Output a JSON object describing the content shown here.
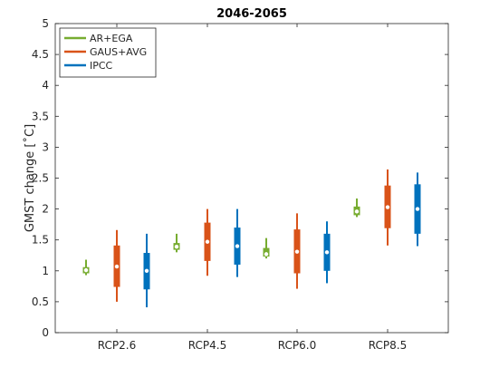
{
  "chart_data": {
    "type": "boxplot",
    "title": "2046-2065",
    "xlabel": "",
    "ylabel": "GMST change [˚C]",
    "ylim": [
      0,
      5
    ],
    "yticks": [
      0,
      0.5,
      1,
      1.5,
      2,
      2.5,
      3,
      3.5,
      4,
      4.5,
      5
    ],
    "ytick_labels": [
      "0",
      "0.5",
      "1",
      "1.5",
      "2",
      "2.5",
      "3",
      "3.5",
      "4",
      "4.5",
      "5"
    ],
    "categories": [
      "RCP2.6",
      "RCP4.5",
      "RCP6.0",
      "RCP8.5"
    ],
    "grid": false,
    "legend_position": "top-left",
    "series": [
      {
        "name": "AR+EGA",
        "color": "#77ac30",
        "boxes": [
          {
            "whisker_low": 0.93,
            "q1": 0.96,
            "median": 1.01,
            "q3": 1.06,
            "whisker_high": 1.18
          },
          {
            "whisker_low": 1.3,
            "q1": 1.34,
            "median": 1.39,
            "q3": 1.45,
            "whisker_high": 1.6
          },
          {
            "whisker_low": 1.2,
            "q1": 1.23,
            "median": 1.27,
            "q3": 1.37,
            "whisker_high": 1.53
          },
          {
            "whisker_low": 1.87,
            "q1": 1.9,
            "median": 1.96,
            "q3": 2.04,
            "whisker_high": 2.17
          }
        ]
      },
      {
        "name": "GAUS+AVG",
        "color": "#d95319",
        "boxes": [
          {
            "whisker_low": 0.5,
            "q1": 0.74,
            "median": 1.07,
            "q3": 1.41,
            "whisker_high": 1.66
          },
          {
            "whisker_low": 0.92,
            "q1": 1.16,
            "median": 1.47,
            "q3": 1.78,
            "whisker_high": 2.0
          },
          {
            "whisker_low": 0.71,
            "q1": 0.96,
            "median": 1.31,
            "q3": 1.67,
            "whisker_high": 1.93
          },
          {
            "whisker_low": 1.41,
            "q1": 1.69,
            "median": 2.03,
            "q3": 2.38,
            "whisker_high": 2.64
          }
        ]
      },
      {
        "name": "IPCC",
        "color": "#0072bd",
        "boxes": [
          {
            "whisker_low": 0.41,
            "q1": 0.7,
            "median": 1.0,
            "q3": 1.29,
            "whisker_high": 1.6
          },
          {
            "whisker_low": 0.9,
            "q1": 1.1,
            "median": 1.4,
            "q3": 1.7,
            "whisker_high": 2.0
          },
          {
            "whisker_low": 0.8,
            "q1": 1.0,
            "median": 1.3,
            "q3": 1.6,
            "whisker_high": 1.8
          },
          {
            "whisker_low": 1.4,
            "q1": 1.6,
            "median": 2.0,
            "q3": 2.4,
            "whisker_high": 2.59
          }
        ]
      }
    ]
  }
}
